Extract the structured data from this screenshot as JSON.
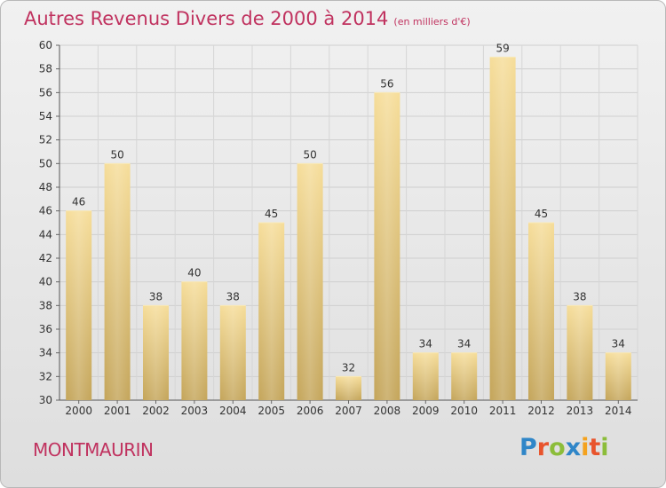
{
  "header": {
    "title": "Autres Revenus Divers de 2000 à 2014",
    "unit": "(en milliers d'€)"
  },
  "footer": {
    "commune": "MONTMAURIN",
    "logo": "Proxiti"
  },
  "colors": {
    "accent": "#c0325f",
    "bar_light": "#f6dd99",
    "bar_dark": "#c7a95c"
  },
  "chart_data": {
    "type": "bar",
    "title": "Autres Revenus Divers de 2000 à 2014",
    "subtitle": "(en milliers d'€)",
    "categories": [
      "2000",
      "2001",
      "2002",
      "2003",
      "2004",
      "2005",
      "2006",
      "2007",
      "2008",
      "2009",
      "2010",
      "2011",
      "2012",
      "2013",
      "2014"
    ],
    "values": [
      46,
      50,
      38,
      40,
      38,
      45,
      50,
      32,
      56,
      34,
      34,
      59,
      45,
      38,
      34
    ],
    "ylim": [
      30,
      60
    ],
    "yticks": [
      30,
      32,
      34,
      36,
      38,
      40,
      42,
      44,
      46,
      48,
      50,
      52,
      54,
      56,
      58,
      60
    ],
    "grid": true
  }
}
